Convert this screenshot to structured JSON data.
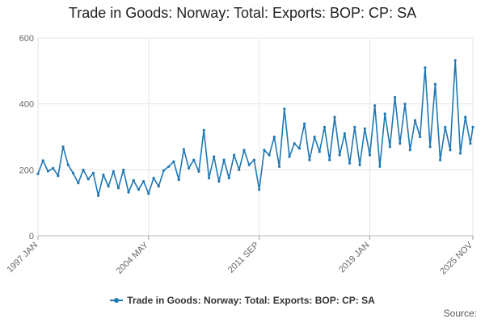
{
  "chart_data": {
    "type": "line",
    "title": "Trade in Goods: Norway: Total: Exports: BOP: CP: SA",
    "xlabel": "",
    "ylabel": "",
    "ylim": [
      0,
      600
    ],
    "yticks": [
      0,
      200,
      400,
      600
    ],
    "x_range": [
      "1997 JAN",
      "2025 NOV"
    ],
    "xticks": [
      "1997 JAN",
      "2004 MAY",
      "2011 SEP",
      "2019 JAN",
      "2025 NOV"
    ],
    "grid": true,
    "legend_position": "bottom-center",
    "series": [
      {
        "name": "Trade in Goods: Norway: Total: Exports: BOP: CP: SA",
        "color": "#1f77b4",
        "frequency": "monthly, sampled every 4 months",
        "x": [
          "1997 JAN",
          "1997 MAY",
          "1997 SEP",
          "1998 JAN",
          "1998 MAY",
          "1998 SEP",
          "1999 JAN",
          "1999 MAY",
          "1999 SEP",
          "2000 JAN",
          "2000 MAY",
          "2000 SEP",
          "2001 JAN",
          "2001 MAY",
          "2001 SEP",
          "2002 JAN",
          "2002 MAY",
          "2002 SEP",
          "2003 JAN",
          "2003 MAY",
          "2003 SEP",
          "2004 JAN",
          "2004 MAY",
          "2004 SEP",
          "2005 JAN",
          "2005 MAY",
          "2005 SEP",
          "2006 JAN",
          "2006 MAY",
          "2006 SEP",
          "2007 JAN",
          "2007 MAY",
          "2007 SEP",
          "2008 JAN",
          "2008 MAY",
          "2008 SEP",
          "2009 JAN",
          "2009 MAY",
          "2009 SEP",
          "2010 JAN",
          "2010 MAY",
          "2010 SEP",
          "2011 JAN",
          "2011 MAY",
          "2011 SEP",
          "2012 JAN",
          "2012 MAY",
          "2012 SEP",
          "2013 JAN",
          "2013 MAY",
          "2013 SEP",
          "2014 JAN",
          "2014 MAY",
          "2014 SEP",
          "2015 JAN",
          "2015 MAY",
          "2015 SEP",
          "2016 JAN",
          "2016 MAY",
          "2016 SEP",
          "2017 JAN",
          "2017 MAY",
          "2017 SEP",
          "2018 JAN",
          "2018 MAY",
          "2018 SEP",
          "2019 JAN",
          "2019 MAY",
          "2019 SEP",
          "2020 JAN",
          "2020 MAY",
          "2020 SEP",
          "2021 JAN",
          "2021 MAY",
          "2021 SEP",
          "2022 JAN",
          "2022 MAY",
          "2022 SEP",
          "2023 JAN",
          "2023 MAY",
          "2023 SEP",
          "2024 JAN",
          "2024 MAY",
          "2024 SEP",
          "2025 JAN",
          "2025 MAY",
          "2025 SEP",
          "2025 NOV"
        ],
        "values": [
          188,
          228,
          196,
          205,
          182,
          270,
          215,
          190,
          160,
          200,
          172,
          190,
          122,
          185,
          150,
          195,
          145,
          200,
          132,
          168,
          140,
          165,
          128,
          175,
          150,
          198,
          210,
          225,
          170,
          262,
          205,
          230,
          195,
          320,
          175,
          240,
          165,
          230,
          175,
          245,
          200,
          260,
          215,
          230,
          140,
          260,
          245,
          300,
          210,
          385,
          240,
          280,
          265,
          340,
          230,
          300,
          255,
          330,
          230,
          360,
          245,
          310,
          220,
          330,
          215,
          325,
          245,
          395,
          210,
          370,
          270,
          420,
          280,
          400,
          260,
          350,
          300,
          510,
          270,
          460,
          230,
          330,
          260,
          532,
          250,
          360,
          280,
          330
        ]
      }
    ]
  },
  "source_label": "Source:"
}
